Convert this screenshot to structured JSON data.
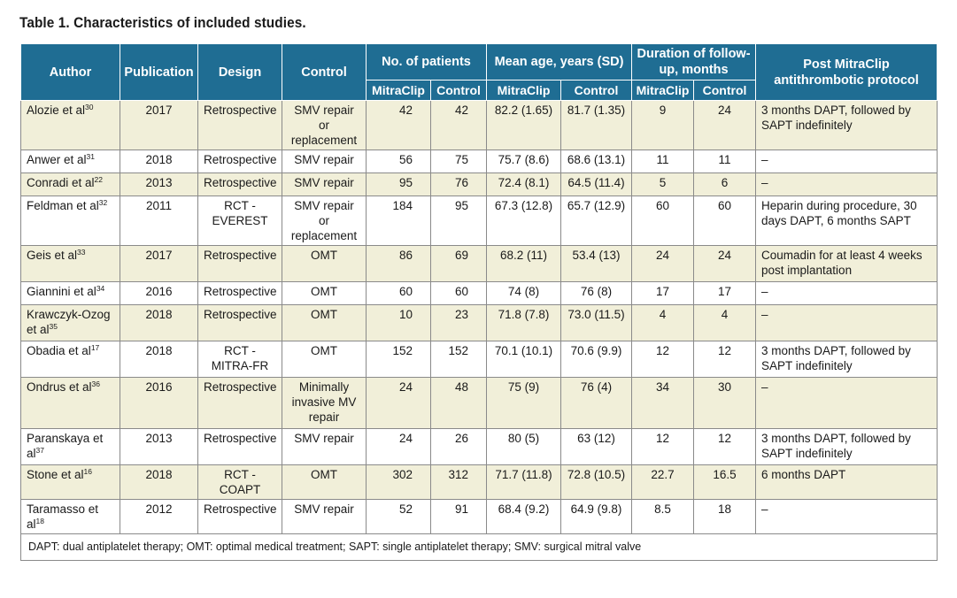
{
  "title": "Table 1. Characteristics of included studies.",
  "headers": {
    "author": "Author",
    "publication": "Publication",
    "design": "Design",
    "control": "Control",
    "patients": "No. of patients",
    "age": "Mean age, years (SD)",
    "followup": "Duration of follow-up, months",
    "protocol": "Post MitraClip antithrombotic protocol",
    "sub_mitraclip": "MitraClip",
    "sub_control": "Control"
  },
  "rows": [
    {
      "author": "Alozie et al",
      "ref": "30",
      "year": "2017",
      "design": "Retrospective",
      "control": "SMV repair or replacement",
      "n_mc": "42",
      "n_ctrl": "42",
      "age_mc": "82.2 (1.65)",
      "age_ctrl": "81.7 (1.35)",
      "fu_mc": "9",
      "fu_ctrl": "24",
      "protocol": "3 months DAPT, followed by SAPT indefinitely"
    },
    {
      "author": "Anwer et al",
      "ref": "31",
      "year": "2018",
      "design": "Retrospective",
      "control": "SMV repair",
      "n_mc": "56",
      "n_ctrl": "75",
      "age_mc": "75.7 (8.6)",
      "age_ctrl": "68.6 (13.1)",
      "fu_mc": "11",
      "fu_ctrl": "11",
      "protocol": "–"
    },
    {
      "author": "Conradi et al",
      "ref": "22",
      "year": "2013",
      "design": "Retrospective",
      "control": "SMV repair",
      "n_mc": "95",
      "n_ctrl": "76",
      "age_mc": "72.4 (8.1)",
      "age_ctrl": "64.5 (11.4)",
      "fu_mc": "5",
      "fu_ctrl": "6",
      "protocol": "–"
    },
    {
      "author": "Feldman et al",
      "ref": "32",
      "year": "2011",
      "design": "RCT - EVEREST",
      "control": "SMV repair or replacement",
      "n_mc": "184",
      "n_ctrl": "95",
      "age_mc": "67.3 (12.8)",
      "age_ctrl": "65.7 (12.9)",
      "fu_mc": "60",
      "fu_ctrl": "60",
      "protocol": "Heparin during procedure, 30 days DAPT, 6 months SAPT"
    },
    {
      "author": "Geis et al",
      "ref": "33",
      "year": "2017",
      "design": "Retrospective",
      "control": "OMT",
      "n_mc": "86",
      "n_ctrl": "69",
      "age_mc": "68.2 (11)",
      "age_ctrl": "53.4 (13)",
      "fu_mc": "24",
      "fu_ctrl": "24",
      "protocol": "Coumadin for at least 4 weeks post implantation"
    },
    {
      "author": "Giannini et al",
      "ref": "34",
      "year": "2016",
      "design": "Retrospective",
      "control": "OMT",
      "n_mc": "60",
      "n_ctrl": "60",
      "age_mc": "74 (8)",
      "age_ctrl": "76 (8)",
      "fu_mc": "17",
      "fu_ctrl": "17",
      "protocol": "–"
    },
    {
      "author": "Krawczyk-Ozog et al",
      "ref": "35",
      "year": "2018",
      "design": "Retrospective",
      "control": "OMT",
      "n_mc": "10",
      "n_ctrl": "23",
      "age_mc": "71.8 (7.8)",
      "age_ctrl": "73.0 (11.5)",
      "fu_mc": "4",
      "fu_ctrl": "4",
      "protocol": "–"
    },
    {
      "author": "Obadia et al",
      "ref": "17",
      "year": "2018",
      "design": "RCT - MITRA-FR",
      "control": "OMT",
      "n_mc": "152",
      "n_ctrl": "152",
      "age_mc": "70.1 (10.1)",
      "age_ctrl": "70.6 (9.9)",
      "fu_mc": "12",
      "fu_ctrl": "12",
      "protocol": "3 months DAPT, followed by SAPT indefinitely"
    },
    {
      "author": "Ondrus et al",
      "ref": "36",
      "year": "2016",
      "design": "Retrospective",
      "control": "Minimally invasive MV repair",
      "n_mc": "24",
      "n_ctrl": "48",
      "age_mc": "75 (9)",
      "age_ctrl": "76 (4)",
      "fu_mc": "34",
      "fu_ctrl": "30",
      "protocol": "–"
    },
    {
      "author": "Paranskaya et al",
      "ref": "37",
      "year": "2013",
      "design": "Retrospective",
      "control": "SMV repair",
      "n_mc": "24",
      "n_ctrl": "26",
      "age_mc": "80 (5)",
      "age_ctrl": "63 (12)",
      "fu_mc": "12",
      "fu_ctrl": "12",
      "protocol": "3 months DAPT, followed by SAPT indefinitely"
    },
    {
      "author": "Stone et al",
      "ref": "16",
      "year": "2018",
      "design": "RCT - COAPT",
      "control": "OMT",
      "n_mc": "302",
      "n_ctrl": "312",
      "age_mc": "71.7 (11.8)",
      "age_ctrl": "72.8 (10.5)",
      "fu_mc": "22.7",
      "fu_ctrl": "16.5",
      "protocol": "6 months DAPT"
    },
    {
      "author": "Taramasso et al",
      "ref": "18",
      "year": "2012",
      "design": "Retrospective",
      "control": "SMV repair",
      "n_mc": "52",
      "n_ctrl": "91",
      "age_mc": "68.4 (9.2)",
      "age_ctrl": "64.9 (9.8)",
      "fu_mc": "8.5",
      "fu_ctrl": "18",
      "protocol": "–"
    }
  ],
  "footnote": "DAPT: dual antiplatelet therapy; OMT: optimal medical treatment; SAPT: single antiplatelet therapy; SMV: surgical mitral valve"
}
